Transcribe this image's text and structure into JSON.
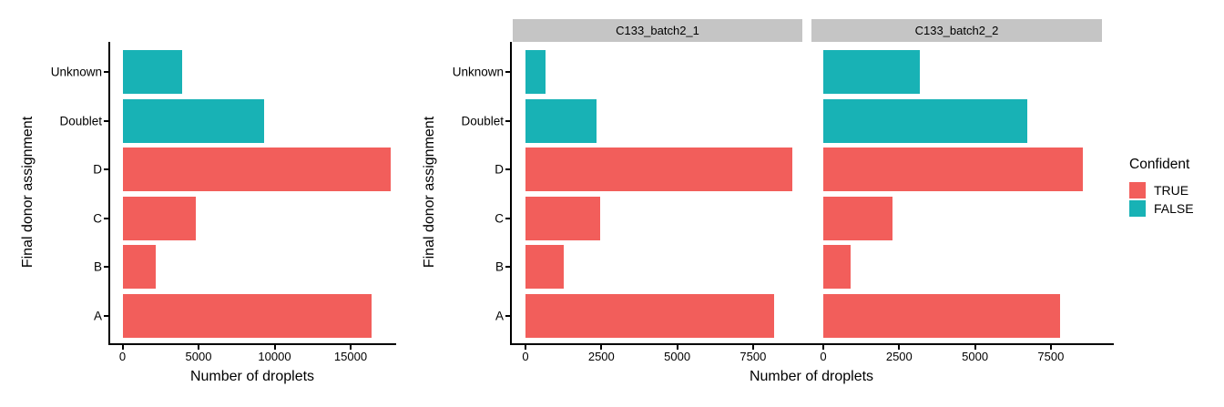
{
  "figure": {
    "x_axis_title": "Number of droplets",
    "y_axis_title": "Final donor assignment",
    "categories_top_to_bottom": [
      "Unknown",
      "Doublet",
      "D",
      "C",
      "B",
      "A"
    ],
    "colors": {
      "confident_true": "#F25E5B",
      "confident_false": "#18B2B5",
      "strip_background": "#C5C5C5",
      "axis": "#000000",
      "text": "#000000"
    }
  },
  "legend": {
    "title": "Confident",
    "items": [
      {
        "label": "TRUE",
        "color": "#F25E5B"
      },
      {
        "label": "FALSE",
        "color": "#18B2B5"
      }
    ]
  },
  "chart_data": [
    {
      "id": "combined",
      "type": "bar",
      "orientation": "horizontal",
      "facet_label": null,
      "categories": [
        "Unknown",
        "Doublet",
        "D",
        "C",
        "B",
        "A"
      ],
      "values": [
        3900,
        9300,
        17650,
        4800,
        2200,
        16400
      ],
      "confident": [
        false,
        false,
        true,
        true,
        true,
        true
      ],
      "series_color_rule": "confident TRUE = red, FALSE = teal",
      "xlabel": "Number of droplets",
      "ylabel": "Final donor assignment",
      "x_ticks": [
        0,
        5000,
        10000,
        15000
      ],
      "xlim": [
        0,
        17950
      ],
      "grid": false,
      "legend_position": "none"
    },
    {
      "id": "facet-1",
      "type": "bar",
      "orientation": "horizontal",
      "facet_label": "C133_batch2_1",
      "categories": [
        "Unknown",
        "Doublet",
        "D",
        "C",
        "B",
        "A"
      ],
      "values": [
        650,
        2350,
        8800,
        2450,
        1270,
        8200
      ],
      "confident": [
        false,
        false,
        true,
        true,
        true,
        true
      ],
      "xlabel": "Number of droplets",
      "ylabel": "Final donor assignment",
      "x_ticks": [
        0,
        2500,
        5000,
        7500
      ],
      "xlim": [
        0,
        9330
      ],
      "grid": false,
      "legend_position": "right"
    },
    {
      "id": "facet-2",
      "type": "bar",
      "orientation": "horizontal",
      "facet_label": "C133_batch2_2",
      "categories": [
        "Unknown",
        "Doublet",
        "D",
        "C",
        "B",
        "A"
      ],
      "values": [
        3170,
        6730,
        8550,
        2280,
        900,
        7800
      ],
      "confident": [
        false,
        false,
        true,
        true,
        true,
        true
      ],
      "xlabel": "Number of droplets",
      "ylabel": "Final donor assignment",
      "x_ticks": [
        0,
        2500,
        5000,
        7500
      ],
      "xlim": [
        0,
        9540
      ],
      "grid": false,
      "legend_position": "right"
    }
  ]
}
